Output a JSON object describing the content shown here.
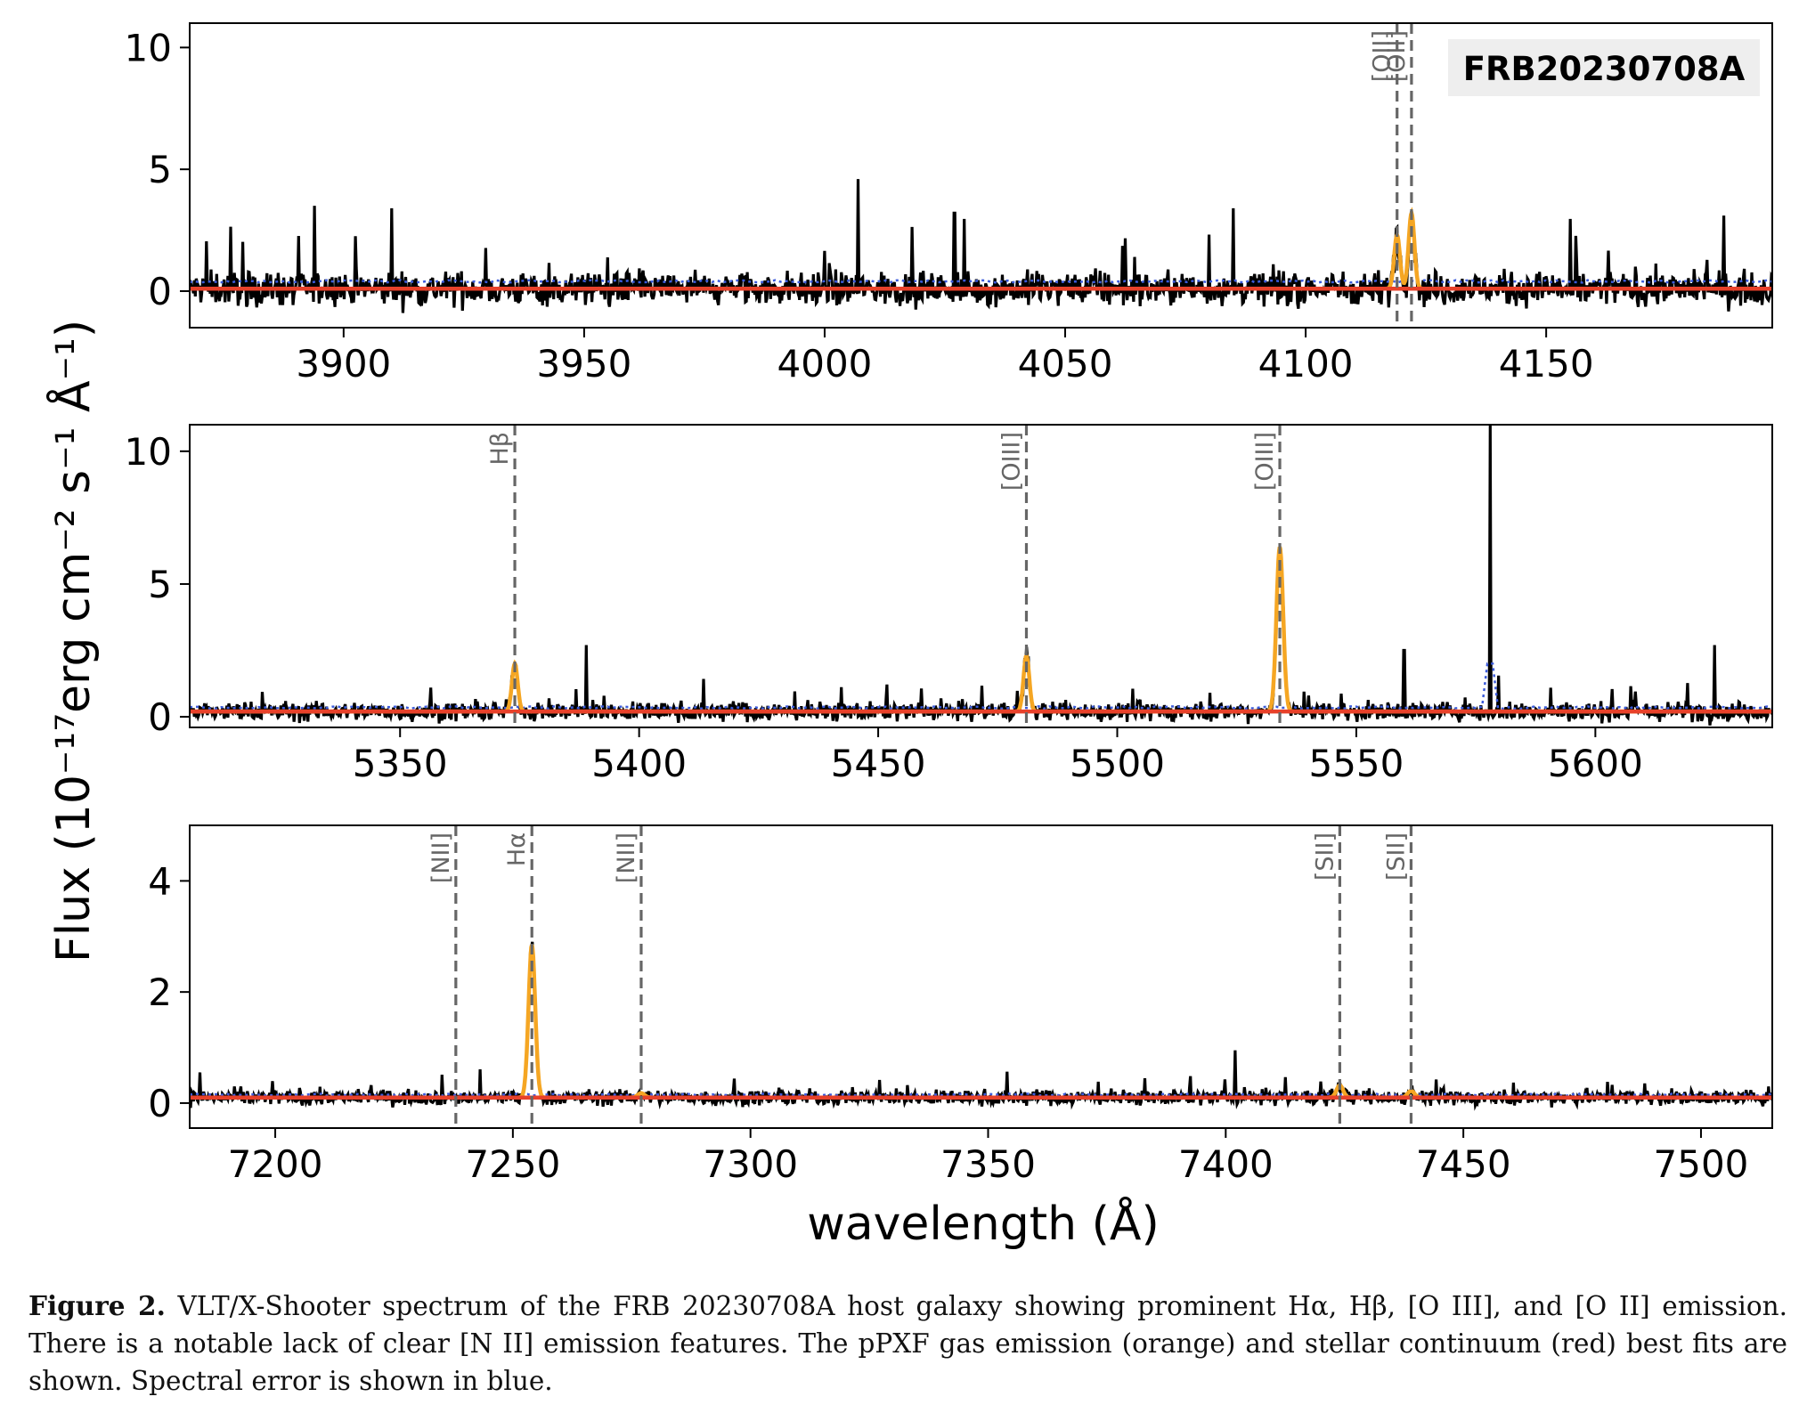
{
  "figure": {
    "ylabel": "Flux (10⁻¹⁷erg cm⁻² s⁻¹ Å⁻¹)",
    "xlabel": "wavelength (Å)",
    "badge": "FRB20230708A",
    "colors": {
      "data": "#000000",
      "gas": "#f5a623",
      "stellar": "#e8412a",
      "error": "#3b5bdb",
      "lines": "#666666"
    }
  },
  "chart_data": [
    {
      "type": "line",
      "panel": "top",
      "xlim": [
        3868,
        4197
      ],
      "ylim": [
        -1.5,
        11
      ],
      "xticks": [
        3900,
        3950,
        4000,
        4050,
        4100,
        4150
      ],
      "yticks": [
        0,
        5,
        10
      ],
      "emission_lines": [
        {
          "label": "[OII]",
          "x": 4119
        },
        {
          "label": "[OII]",
          "x": 4122
        }
      ],
      "gas_peaks": [
        {
          "x": 4119,
          "amp": 2.2,
          "sigma": 0.6
        },
        {
          "x": 4122,
          "amp": 3.1,
          "sigma": 0.6
        }
      ],
      "spikes": [
        {
          "x": 4007,
          "y": 4.6
        },
        {
          "x": 3894,
          "y": 3.5
        },
        {
          "x": 3910,
          "y": 3.4
        },
        {
          "x": 4027,
          "y": 3.2
        },
        {
          "x": 4085,
          "y": 3.4
        },
        {
          "x": 4187,
          "y": 3.1
        }
      ],
      "noise": 0.9,
      "continuum": 0.1,
      "error_level": 0.4
    },
    {
      "type": "line",
      "panel": "middle",
      "xlim": [
        5306,
        5637
      ],
      "ylim": [
        -0.4,
        11
      ],
      "xticks": [
        5350,
        5400,
        5450,
        5500,
        5550,
        5600
      ],
      "yticks": [
        0,
        5,
        10
      ],
      "emission_lines": [
        {
          "label": "Hβ",
          "x": 5374
        },
        {
          "label": "[OIII]",
          "x": 5481
        },
        {
          "label": "[OIII]",
          "x": 5534
        }
      ],
      "gas_peaks": [
        {
          "x": 5374,
          "amp": 1.8,
          "sigma": 0.6
        },
        {
          "x": 5481,
          "amp": 2.1,
          "sigma": 0.6
        },
        {
          "x": 5534,
          "amp": 6.2,
          "sigma": 0.7
        }
      ],
      "spikes": [
        {
          "x": 5578,
          "y": 11
        },
        {
          "x": 5389,
          "y": 2.7
        },
        {
          "x": 5625,
          "y": 2.7
        },
        {
          "x": 5560,
          "y": 2.5
        }
      ],
      "noise": 0.45,
      "continuum": 0.2,
      "error_level": 0.35
    },
    {
      "type": "line",
      "panel": "bottom",
      "xlim": [
        7182,
        7515
      ],
      "ylim": [
        -0.45,
        5
      ],
      "xticks": [
        7200,
        7250,
        7300,
        7350,
        7400,
        7450,
        7500
      ],
      "yticks": [
        0,
        2,
        4
      ],
      "emission_lines": [
        {
          "label": "[NII]",
          "x": 7238
        },
        {
          "label": "Hα",
          "x": 7254
        },
        {
          "label": "[NII]",
          "x": 7277
        },
        {
          "label": "[SII]",
          "x": 7424
        },
        {
          "label": "[SII]",
          "x": 7439
        }
      ],
      "gas_peaks": [
        {
          "x": 7254,
          "amp": 2.75,
          "sigma": 0.7
        },
        {
          "x": 7277,
          "amp": 0.08,
          "sigma": 0.7
        },
        {
          "x": 7424,
          "amp": 0.22,
          "sigma": 0.7
        },
        {
          "x": 7439,
          "amp": 0.12,
          "sigma": 0.7
        }
      ],
      "spikes": [
        {
          "x": 7402,
          "y": 0.95
        }
      ],
      "noise": 0.17,
      "continuum": 0.1,
      "error_level": 0.15
    }
  ],
  "caption": {
    "label": "Figure 2.",
    "text": "VLT/X-Shooter spectrum of the FRB 20230708A host galaxy showing prominent Hα, Hβ, [O III], and [O II] emission. There is a notable lack of clear [N II] emission features. The pPXF gas emission (orange) and stellar continuum (red) best fits are shown. Spectral error is shown in blue."
  }
}
